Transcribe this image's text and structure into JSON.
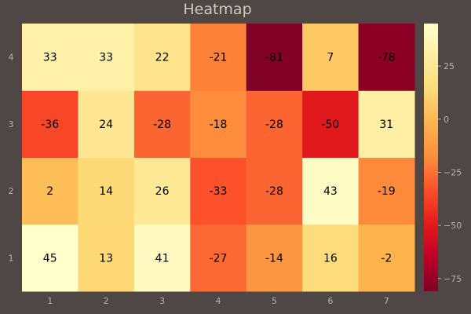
{
  "chart_data": {
    "type": "heatmap",
    "title": "Heatmap",
    "x": [
      1,
      2,
      3,
      4,
      5,
      6,
      7
    ],
    "y": [
      1,
      2,
      3,
      4
    ],
    "values": [
      [
        45,
        13,
        41,
        -27,
        -14,
        16,
        -2
      ],
      [
        2,
        14,
        26,
        -33,
        -28,
        43,
        -19
      ],
      [
        -36,
        24,
        -28,
        -18,
        -28,
        -50,
        31
      ],
      [
        33,
        33,
        22,
        -21,
        -81,
        7,
        -78
      ]
    ],
    "colorscale": "YlOrRd_r",
    "colorbar_ticks": [
      25,
      0,
      -25,
      -50,
      -75
    ],
    "zlim": [
      -81,
      45
    ],
    "cell_labels": true,
    "grid": false,
    "colors": {
      "background": "#4e4745",
      "text": "#000000",
      "axis_text": "#b9b1ab"
    }
  }
}
